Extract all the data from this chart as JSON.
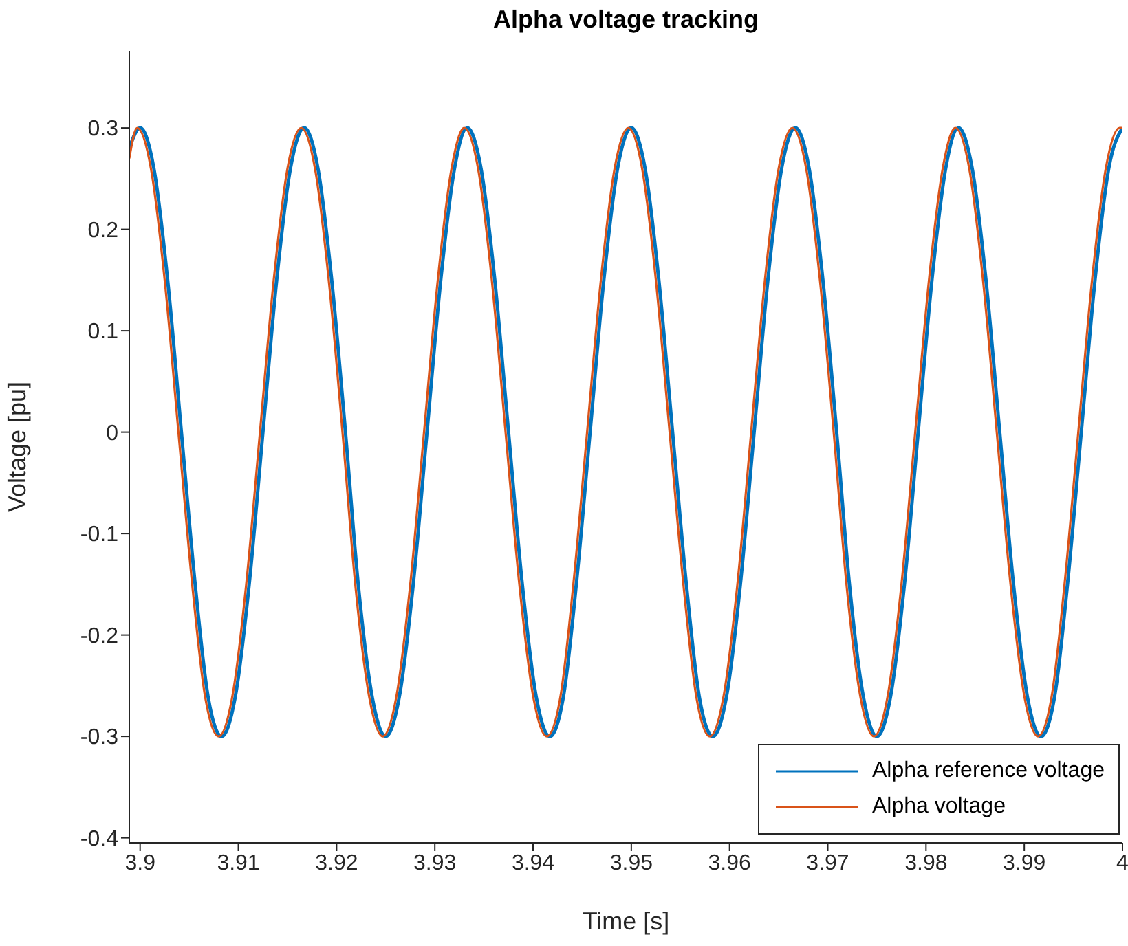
{
  "chart_data": {
    "type": "line",
    "title": "Alpha voltage tracking",
    "xlabel": "Time [s]",
    "ylabel": "Voltage [pu]",
    "x": [
      3.8989,
      3.8997,
      3.9011,
      3.9025,
      3.9039,
      3.9053,
      3.9066,
      3.908,
      3.9094,
      3.9108,
      3.9122,
      3.9136,
      3.915,
      3.9164,
      3.9178,
      3.9192,
      3.9206,
      3.9219,
      3.9233,
      3.9247,
      3.9261,
      3.9275,
      3.9289,
      3.9303,
      3.9317,
      3.933,
      3.9344,
      3.9358,
      3.9372,
      3.9386,
      3.94,
      3.9414,
      3.9428,
      3.9441,
      3.9455,
      3.9469,
      3.9483,
      3.9497,
      3.9511,
      3.9525,
      3.9539,
      3.9553,
      3.9566,
      3.958,
      3.9594,
      3.9608,
      3.9622,
      3.9636,
      3.965,
      3.9664,
      3.9678,
      3.9692,
      3.9706,
      3.9719,
      3.9733,
      3.9747,
      3.9761,
      3.9775,
      3.9789,
      3.9803,
      3.9817,
      3.983,
      3.9844,
      3.9858,
      3.9872,
      3.9886,
      3.99,
      3.9914,
      3.9928,
      3.9941,
      3.9955,
      3.9969,
      3.9983,
      3.9997,
      4.0
    ],
    "series": [
      {
        "name": "Alpha reference voltage",
        "color": "#0072bd",
        "x": [
          3.8989,
          3.9,
          3.9014,
          3.9028,
          3.9042,
          3.9056,
          3.9069,
          3.9083,
          3.9097,
          3.9111,
          3.9125,
          3.9139,
          3.9153,
          3.9167,
          3.9181,
          3.9195,
          3.9209,
          3.9222,
          3.9236,
          3.925,
          3.9264,
          3.9278,
          3.9292,
          3.9306,
          3.932,
          3.9333,
          3.9347,
          3.9361,
          3.9375,
          3.9389,
          3.9403,
          3.9417,
          3.9431,
          3.9444,
          3.9458,
          3.9472,
          3.9486,
          3.95,
          3.9514,
          3.9528,
          3.9542,
          3.9556,
          3.9569,
          3.9583,
          3.9597,
          3.9611,
          3.9625,
          3.9639,
          3.9653,
          3.9667,
          3.9681,
          3.9695,
          3.9709,
          3.9722,
          3.9736,
          3.975,
          3.9764,
          3.9778,
          3.9792,
          3.9806,
          3.982,
          3.9833,
          3.9847,
          3.9861,
          3.9875,
          3.9889,
          3.9903,
          3.9917,
          3.9931,
          3.9944,
          3.9958,
          3.9972,
          3.9986,
          4.0
        ],
        "values": [
          0.28,
          0.3,
          0.26,
          0.15,
          0,
          -0.15,
          -0.26,
          -0.3,
          -0.26,
          -0.15,
          0,
          0.15,
          0.26,
          0.3,
          0.26,
          0.15,
          0,
          -0.15,
          -0.26,
          -0.3,
          -0.26,
          -0.15,
          0,
          0.15,
          0.26,
          0.3,
          0.26,
          0.15,
          0,
          -0.15,
          -0.26,
          -0.3,
          -0.26,
          -0.15,
          0,
          0.15,
          0.26,
          0.3,
          0.26,
          0.15,
          0,
          -0.15,
          -0.26,
          -0.3,
          -0.26,
          -0.15,
          0,
          0.15,
          0.26,
          0.3,
          0.26,
          0.15,
          0,
          -0.15,
          -0.26,
          -0.3,
          -0.26,
          -0.15,
          0,
          0.15,
          0.26,
          0.3,
          0.26,
          0.15,
          0,
          -0.15,
          -0.26,
          -0.3,
          -0.26,
          -0.15,
          0,
          0.15,
          0.26,
          0.3
        ]
      },
      {
        "name": "Alpha voltage",
        "color": "#d95319",
        "values": [
          0.27,
          0.3,
          0.26,
          0.15,
          0,
          -0.15,
          -0.26,
          -0.3,
          -0.26,
          -0.15,
          0,
          0.15,
          0.26,
          0.3,
          0.26,
          0.15,
          0,
          -0.15,
          -0.26,
          -0.3,
          -0.26,
          -0.15,
          0,
          0.15,
          0.26,
          0.3,
          0.26,
          0.15,
          0,
          -0.15,
          -0.26,
          -0.3,
          -0.26,
          -0.15,
          0,
          0.15,
          0.26,
          0.3,
          0.26,
          0.15,
          0,
          -0.15,
          -0.26,
          -0.3,
          -0.26,
          -0.15,
          0,
          0.15,
          0.26,
          0.3,
          0.26,
          0.15,
          0,
          -0.15,
          -0.26,
          -0.3,
          -0.26,
          -0.15,
          0,
          0.15,
          0.26,
          0.3,
          0.26,
          0.15,
          0,
          -0.15,
          -0.26,
          -0.3,
          -0.26,
          -0.15,
          0,
          0.15,
          0.26,
          0.3,
          0.3
        ]
      }
    ],
    "xlim": [
      3.8989,
      4.0
    ],
    "xticks": [
      3.9,
      3.91,
      3.92,
      3.93,
      3.94,
      3.95,
      3.96,
      3.97,
      3.98,
      3.99,
      4
    ],
    "ylim": [
      -0.405,
      0.376
    ],
    "yticks": [
      -0.4,
      -0.3,
      -0.2,
      -0.1,
      0,
      0.1,
      0.2,
      0.3
    ],
    "legend": "bottom right",
    "grid": false,
    "marker": "none",
    "line_style": "solid"
  }
}
